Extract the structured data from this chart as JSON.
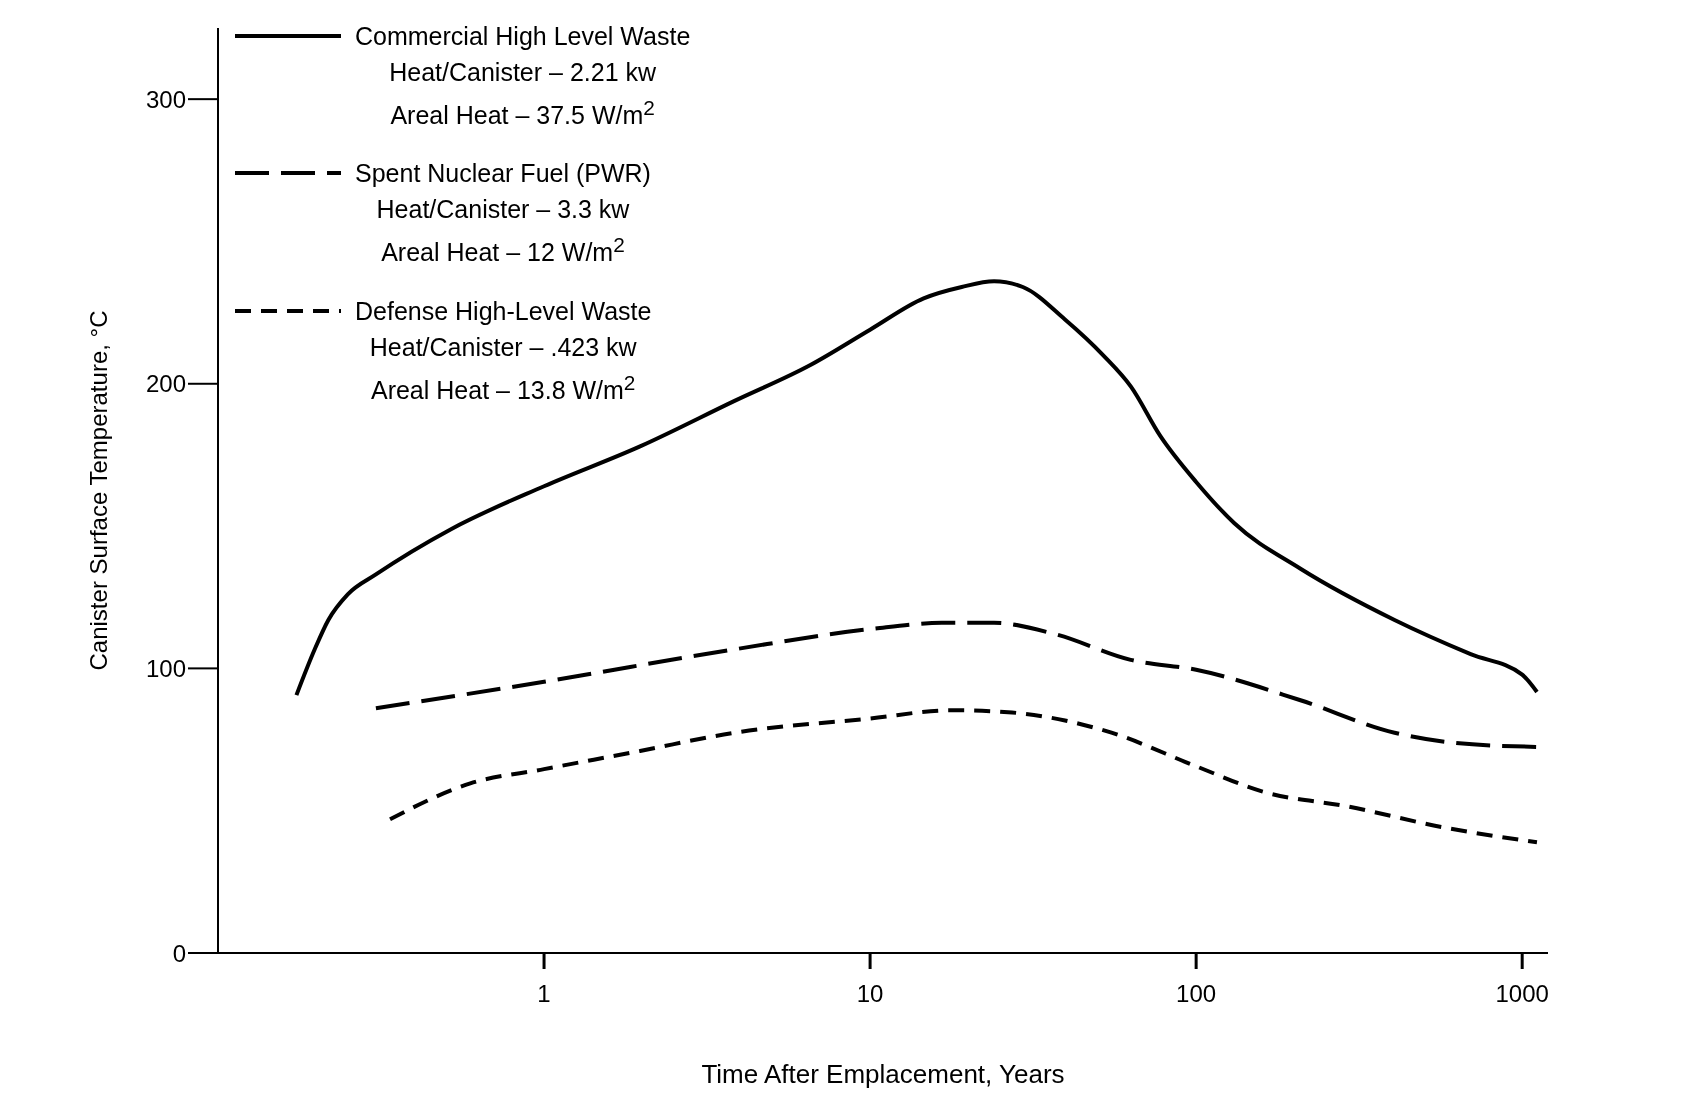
{
  "chart_data": {
    "type": "line",
    "xlabel": "Time After Emplacement, Years",
    "ylabel": "Canister Surface Temperature, °C",
    "log": "x",
    "xlim": [
      0.1,
      1200
    ],
    "xticks": [
      1,
      10,
      100,
      1000
    ],
    "ylim": [
      0,
      325
    ],
    "yticks": [
      0,
      100,
      200,
      300
    ],
    "legend": "top left",
    "marker": "none",
    "series": [
      {
        "name": "Commercial High Level Waste\nHeat/Canister – 2.21 kw\nAreal Heat – 37.5 W/m$^{2}$",
        "color": "#000000",
        "line_style": "solid",
        "x": [
          0.174,
          0.198,
          0.218,
          0.25,
          0.305,
          0.52,
          1,
          1.97,
          3.84,
          6.56,
          10,
          14.6,
          19.1,
          24,
          29.4,
          39.6,
          51.9,
          63.1,
          77.7,
          100,
          131,
          209,
          406,
          695,
          1000,
          1110
        ],
        "values": [
          90.6,
          106.7,
          117,
          126,
          133,
          149,
          164,
          178,
          194,
          206.6,
          219,
          230,
          234,
          236,
          234,
          222.6,
          210,
          199,
          181.6,
          165.5,
          151,
          135,
          117,
          105,
          97.8,
          91.7
        ]
      },
      {
        "name": "Spent Nuclear Fuel (PWR)\nHeat/Canister – 3.3 kw\nAreal Heat – 12 W/m$^{2}$",
        "color": "#000000",
        "line_style": "dashed",
        "x": [
          0.305,
          1,
          3.84,
          10,
          16.6,
          24,
          37,
          63,
          100,
          209,
          406,
          612,
          1110
        ],
        "values": [
          86,
          95.3,
          106.7,
          113.8,
          116,
          116,
          112,
          103,
          99.5,
          88.8,
          77.4,
          73.9,
          72.4
        ]
      },
      {
        "name": "Defense High-Level Waste\nHeat/Canister – .423 kw\nAreal Heat – 13.8 W/m$^{2}$",
        "color": "#000000",
        "line_style": "dashed",
        "x": [
          0.337,
          0.594,
          1,
          1.97,
          3.84,
          10,
          17.8,
          26.5,
          39.6,
          55,
          100,
          160,
          294,
          570,
          1110
        ],
        "values": [
          47,
          59.6,
          64.6,
          71,
          77.4,
          82.4,
          85.3,
          84.6,
          81.7,
          77.4,
          65.6,
          56.7,
          51.4,
          44.2,
          38.9
        ]
      }
    ]
  }
}
